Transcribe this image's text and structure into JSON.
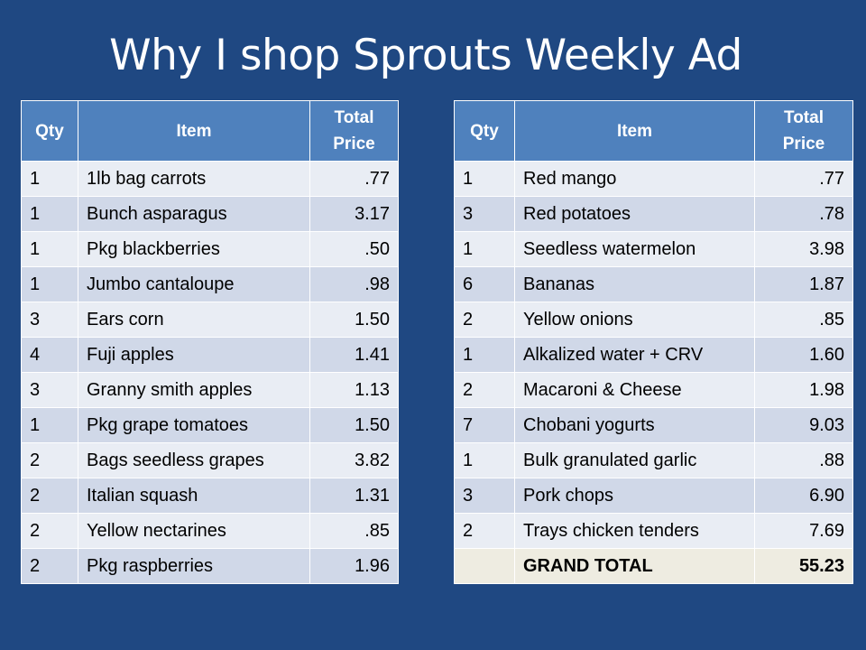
{
  "title": "Why I shop Sprouts Weekly Ad",
  "headers": {
    "qty": "Qty",
    "item": "Item",
    "total_price_line1": "Total",
    "total_price_line2": "Price"
  },
  "left_rows": [
    {
      "qty": "1",
      "item": "1lb bag carrots",
      "price": ".77"
    },
    {
      "qty": "1",
      "item": "Bunch asparagus",
      "price": "3.17"
    },
    {
      "qty": "1",
      "item": "Pkg blackberries",
      "price": ".50"
    },
    {
      "qty": "1",
      "item": "Jumbo cantaloupe",
      "price": ".98"
    },
    {
      "qty": "3",
      "item": "Ears corn",
      "price": "1.50"
    },
    {
      "qty": "4",
      "item": "Fuji apples",
      "price": "1.41"
    },
    {
      "qty": "3",
      "item": "Granny smith apples",
      "price": "1.13"
    },
    {
      "qty": "1",
      "item": "Pkg grape tomatoes",
      "price": "1.50"
    },
    {
      "qty": "2",
      "item": "Bags seedless grapes",
      "price": "3.82"
    },
    {
      "qty": "2",
      "item": "Italian squash",
      "price": "1.31"
    },
    {
      "qty": "2",
      "item": "Yellow nectarines",
      "price": ".85"
    },
    {
      "qty": "2",
      "item": "Pkg raspberries",
      "price": "1.96"
    }
  ],
  "right_rows": [
    {
      "qty": "1",
      "item": "Red mango",
      "price": ".77"
    },
    {
      "qty": "3",
      "item": "Red potatoes",
      "price": ".78"
    },
    {
      "qty": "1",
      "item": "Seedless watermelon",
      "price": "3.98"
    },
    {
      "qty": "6",
      "item": "Bananas",
      "price": "1.87"
    },
    {
      "qty": "2",
      "item": "Yellow onions",
      "price": ".85"
    },
    {
      "qty": "1",
      "item": "Alkalized water + CRV",
      "price": "1.60"
    },
    {
      "qty": "2",
      "item": "Macaroni & Cheese",
      "price": "1.98"
    },
    {
      "qty": "7",
      "item": "Chobani yogurts",
      "price": "9.03"
    },
    {
      "qty": "1",
      "item": "Bulk granulated garlic",
      "price": ".88"
    },
    {
      "qty": "3",
      "item": "Pork chops",
      "price": "6.90"
    },
    {
      "qty": "2",
      "item": "Trays chicken tenders",
      "price": "7.69"
    }
  ],
  "grand_total": {
    "qty": "",
    "label": "GRAND TOTAL",
    "value": "55.23"
  },
  "colors": {
    "background": "#1f4882",
    "header": "#4f81bd",
    "row_light": "#e9edf4",
    "row_dark": "#d0d8e8",
    "grand_total_row": "#eeece1"
  }
}
